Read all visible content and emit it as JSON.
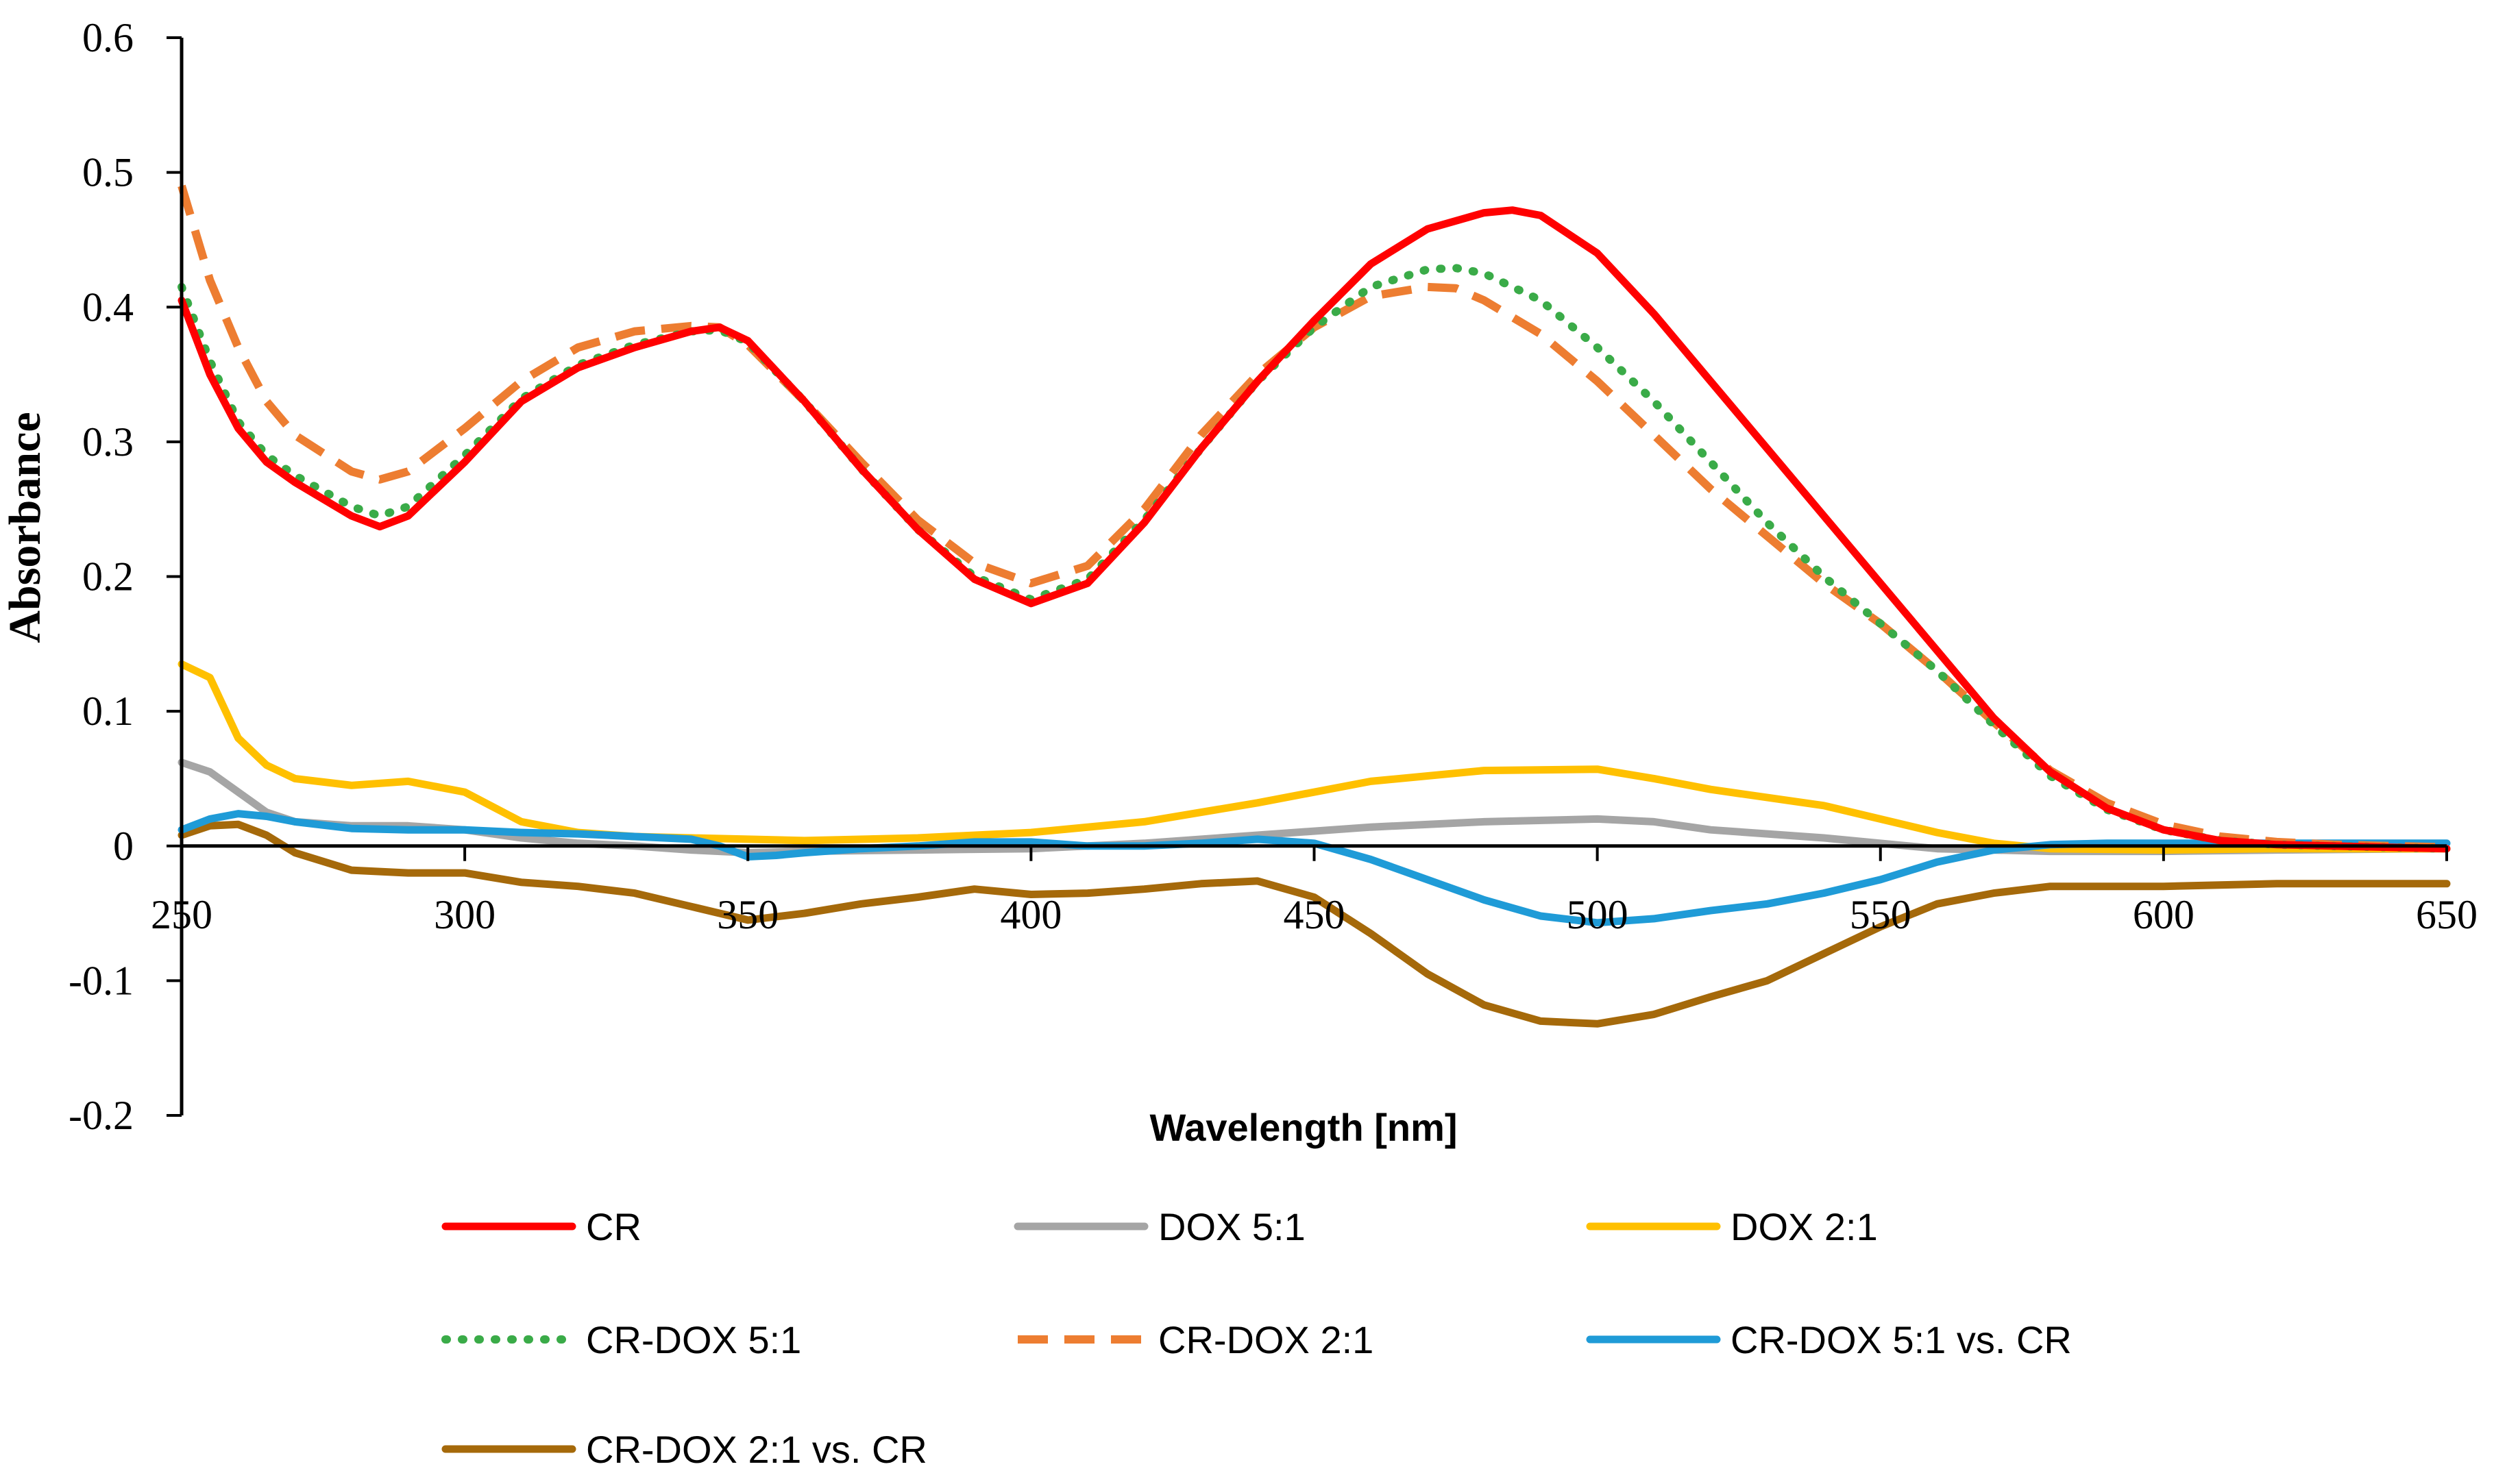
{
  "chart_data": {
    "type": "line",
    "title": "",
    "xlabel": "Wavelength [nm]",
    "ylabel": "Absorbance",
    "xlim": [
      250,
      650
    ],
    "ylim": [
      -0.2,
      0.6
    ],
    "grid": false,
    "legend_position": "bottom",
    "x_ticks": [
      {
        "value": 250,
        "label": "250"
      },
      {
        "value": 300,
        "label": "300"
      },
      {
        "value": 350,
        "label": "350"
      },
      {
        "value": 400,
        "label": "400"
      },
      {
        "value": 450,
        "label": "450"
      },
      {
        "value": 500,
        "label": "500"
      },
      {
        "value": 550,
        "label": "550"
      },
      {
        "value": 600,
        "label": "600"
      },
      {
        "value": 650,
        "label": "650"
      }
    ],
    "y_ticks": [
      {
        "value": 0.6,
        "label": "0.6"
      },
      {
        "value": 0.5,
        "label": "0.5"
      },
      {
        "value": 0.4,
        "label": "0.4"
      },
      {
        "value": 0.3,
        "label": "0.3"
      },
      {
        "value": 0.2,
        "label": "0.2"
      },
      {
        "value": 0.1,
        "label": "0.1"
      },
      {
        "value": 0,
        "label": "0"
      },
      {
        "value": -0.1,
        "label": "-0.1"
      },
      {
        "value": -0.2,
        "label": "-0.2"
      }
    ],
    "series": [
      {
        "name": "CR",
        "color": "#ff0000",
        "dash": "solid",
        "x": [
          250,
          255,
          260,
          265,
          270,
          280,
          285,
          290,
          300,
          310,
          320,
          330,
          340,
          345,
          350,
          360,
          370,
          380,
          390,
          400,
          410,
          420,
          430,
          440,
          450,
          460,
          470,
          480,
          485,
          490,
          500,
          510,
          520,
          530,
          540,
          550,
          560,
          570,
          580,
          590,
          600,
          610,
          620,
          630,
          640,
          650
        ],
        "y": [
          0.405,
          0.35,
          0.31,
          0.285,
          0.27,
          0.245,
          0.237,
          0.245,
          0.285,
          0.33,
          0.355,
          0.37,
          0.382,
          0.385,
          0.375,
          0.33,
          0.28,
          0.235,
          0.198,
          0.18,
          0.195,
          0.24,
          0.295,
          0.345,
          0.39,
          0.432,
          0.458,
          0.47,
          0.472,
          0.468,
          0.44,
          0.395,
          0.345,
          0.295,
          0.245,
          0.195,
          0.145,
          0.095,
          0.055,
          0.028,
          0.012,
          0.004,
          0.001,
          0.0,
          -0.001,
          -0.002
        ]
      },
      {
        "name": "DOX 5:1",
        "color": "#a5a5a5",
        "dash": "solid",
        "x": [
          250,
          255,
          260,
          265,
          270,
          280,
          290,
          300,
          310,
          320,
          330,
          340,
          350,
          360,
          380,
          400,
          420,
          440,
          460,
          480,
          500,
          510,
          520,
          540,
          560,
          580,
          600,
          620,
          650
        ],
        "y": [
          0.062,
          0.055,
          0.04,
          0.025,
          0.018,
          0.015,
          0.015,
          0.012,
          0.006,
          0.002,
          0.0,
          -0.003,
          -0.005,
          -0.004,
          -0.003,
          -0.002,
          0.002,
          0.008,
          0.014,
          0.018,
          0.02,
          0.018,
          0.012,
          0.006,
          -0.002,
          -0.004,
          -0.004,
          -0.003,
          -0.002
        ]
      },
      {
        "name": "DOX 2:1",
        "color": "#ffc000",
        "dash": "solid",
        "x": [
          250,
          255,
          260,
          265,
          270,
          280,
          290,
          300,
          310,
          320,
          330,
          340,
          350,
          360,
          380,
          400,
          420,
          440,
          460,
          480,
          500,
          510,
          520,
          540,
          560,
          570,
          580,
          600,
          620,
          650
        ],
        "y": [
          0.135,
          0.125,
          0.08,
          0.06,
          0.05,
          0.045,
          0.048,
          0.04,
          0.018,
          0.01,
          0.007,
          0.006,
          0.005,
          0.004,
          0.006,
          0.01,
          0.018,
          0.032,
          0.048,
          0.056,
          0.057,
          0.05,
          0.042,
          0.03,
          0.01,
          0.002,
          -0.002,
          -0.003,
          -0.002,
          -0.002
        ]
      },
      {
        "name": "CR-DOX 5:1",
        "color": "#3aab48",
        "dash": "dotted",
        "x": [
          250,
          255,
          260,
          265,
          270,
          280,
          285,
          290,
          300,
          310,
          320,
          330,
          340,
          345,
          350,
          360,
          370,
          380,
          390,
          400,
          410,
          420,
          430,
          440,
          450,
          460,
          470,
          475,
          480,
          490,
          500,
          510,
          520,
          530,
          540,
          550,
          560,
          570,
          580,
          590,
          600,
          610,
          620,
          630,
          640,
          650
        ],
        "y": [
          0.415,
          0.36,
          0.315,
          0.29,
          0.275,
          0.252,
          0.245,
          0.252,
          0.29,
          0.332,
          0.357,
          0.372,
          0.382,
          0.383,
          0.374,
          0.33,
          0.28,
          0.235,
          0.2,
          0.183,
          0.198,
          0.242,
          0.295,
          0.345,
          0.385,
          0.415,
          0.428,
          0.429,
          0.425,
          0.405,
          0.37,
          0.33,
          0.285,
          0.24,
          0.2,
          0.165,
          0.13,
          0.09,
          0.052,
          0.027,
          0.012,
          0.004,
          0.001,
          0.0,
          -0.001,
          -0.002
        ]
      },
      {
        "name": "CR-DOX 2:1",
        "color": "#ed7d31",
        "dash": "dashed",
        "x": [
          250,
          255,
          260,
          265,
          270,
          280,
          285,
          290,
          300,
          310,
          320,
          330,
          340,
          345,
          350,
          360,
          370,
          380,
          390,
          400,
          410,
          420,
          430,
          440,
          450,
          460,
          470,
          475,
          480,
          490,
          500,
          510,
          520,
          530,
          540,
          550,
          560,
          570,
          580,
          590,
          600,
          610,
          620,
          630,
          640,
          650
        ],
        "y": [
          0.49,
          0.42,
          0.37,
          0.33,
          0.305,
          0.278,
          0.272,
          0.278,
          0.31,
          0.345,
          0.37,
          0.382,
          0.386,
          0.385,
          0.372,
          0.33,
          0.285,
          0.242,
          0.21,
          0.195,
          0.208,
          0.25,
          0.305,
          0.35,
          0.385,
          0.408,
          0.415,
          0.414,
          0.405,
          0.38,
          0.345,
          0.305,
          0.265,
          0.23,
          0.195,
          0.165,
          0.13,
          0.092,
          0.056,
          0.032,
          0.016,
          0.007,
          0.003,
          0.001,
          0.0,
          -0.001
        ]
      },
      {
        "name": "CR-DOX 5:1 vs. CR",
        "color": "#1f9bd7",
        "dash": "solid",
        "x": [
          250,
          255,
          260,
          265,
          270,
          280,
          290,
          300,
          310,
          320,
          330,
          340,
          345,
          350,
          355,
          360,
          370,
          380,
          390,
          400,
          410,
          420,
          430,
          440,
          450,
          460,
          470,
          480,
          490,
          500,
          510,
          520,
          530,
          540,
          550,
          560,
          570,
          580,
          590,
          600,
          620,
          650
        ],
        "y": [
          0.012,
          0.02,
          0.024,
          0.022,
          0.018,
          0.013,
          0.012,
          0.012,
          0.01,
          0.009,
          0.007,
          0.005,
          0.0,
          -0.008,
          -0.007,
          -0.005,
          -0.002,
          0.0,
          0.003,
          0.003,
          0.0,
          0.0,
          0.002,
          0.005,
          0.002,
          -0.01,
          -0.025,
          -0.04,
          -0.052,
          -0.057,
          -0.054,
          -0.048,
          -0.043,
          -0.035,
          -0.025,
          -0.012,
          -0.003,
          0.001,
          0.002,
          0.002,
          0.002,
          0.002
        ]
      },
      {
        "name": "CR-DOX 2:1 vs. CR",
        "color": "#a5690a",
        "dash": "solid",
        "x": [
          250,
          255,
          260,
          265,
          270,
          280,
          290,
          300,
          310,
          320,
          330,
          340,
          350,
          360,
          370,
          380,
          390,
          400,
          410,
          420,
          430,
          440,
          450,
          460,
          470,
          480,
          490,
          500,
          510,
          520,
          530,
          540,
          550,
          560,
          570,
          580,
          600,
          620,
          650
        ],
        "y": [
          0.008,
          0.015,
          0.016,
          0.008,
          -0.005,
          -0.018,
          -0.02,
          -0.02,
          -0.027,
          -0.03,
          -0.035,
          -0.045,
          -0.055,
          -0.05,
          -0.043,
          -0.038,
          -0.032,
          -0.036,
          -0.035,
          -0.032,
          -0.028,
          -0.026,
          -0.038,
          -0.065,
          -0.095,
          -0.118,
          -0.13,
          -0.132,
          -0.125,
          -0.112,
          -0.1,
          -0.08,
          -0.06,
          -0.043,
          -0.035,
          -0.03,
          -0.03,
          -0.028,
          -0.028
        ]
      }
    ]
  }
}
